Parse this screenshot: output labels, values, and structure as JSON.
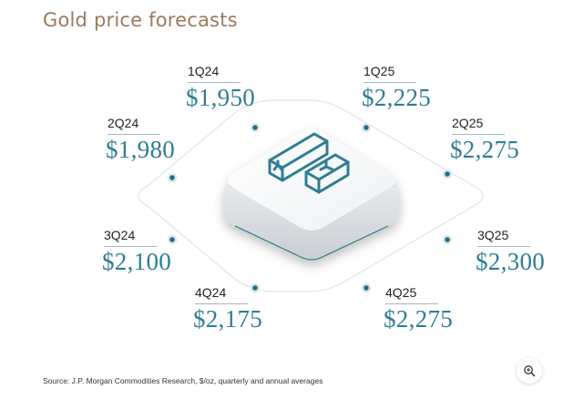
{
  "title": "Gold price forecasts",
  "quarters": [
    {
      "label": "1Q24",
      "price": "$1,950"
    },
    {
      "label": "2Q24",
      "price": "$1,980"
    },
    {
      "label": "3Q24",
      "price": "$2,100"
    },
    {
      "label": "4Q24",
      "price": "$2,175"
    },
    {
      "label": "1Q25",
      "price": "$2,225"
    },
    {
      "label": "2Q25",
      "price": "$2,275"
    },
    {
      "label": "3Q25",
      "price": "$2,300"
    },
    {
      "label": "4Q25",
      "price": "$2,275"
    }
  ],
  "source": "Source: J.P. Morgan Commodities Research, $/oz, quarterly and annual averages",
  "icons": {
    "center": "gold-bars-icon",
    "zoom": "zoom-in-icon"
  },
  "colors": {
    "accent": "#2f7d93",
    "title": "#9a7a5c",
    "dot": "#1f6f86"
  }
}
